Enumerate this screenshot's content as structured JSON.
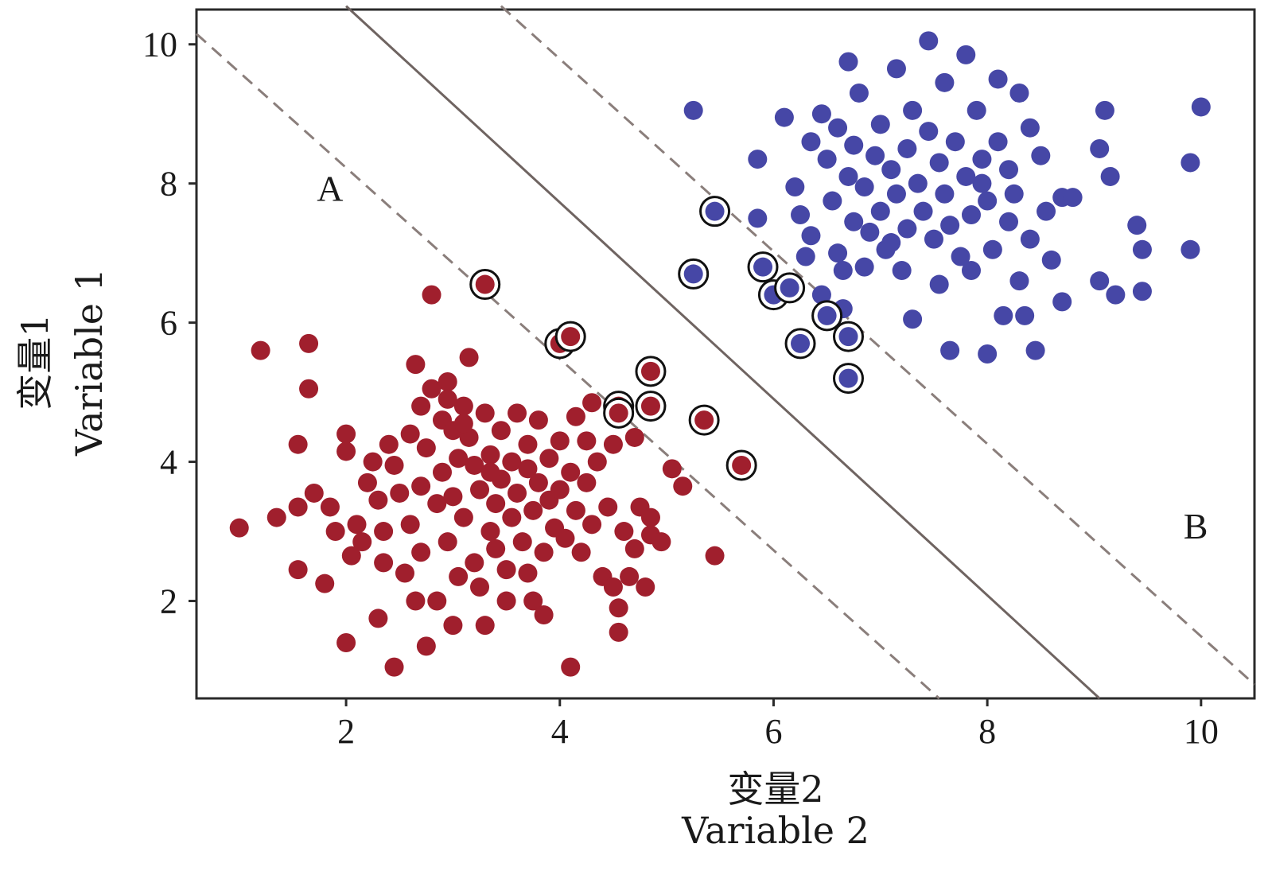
{
  "chart_data": {
    "type": "scatter",
    "title": "",
    "xlabel_cn": "变量2",
    "xlabel_en": "Variable 2",
    "ylabel_cn": "变量1",
    "ylabel_en": "Variable 1",
    "xlim": [
      0.6,
      10.5
    ],
    "ylim": [
      0.6,
      10.5
    ],
    "xticks": [
      2,
      4,
      6,
      8,
      10
    ],
    "yticks": [
      2,
      4,
      6,
      8,
      10
    ],
    "grid": false,
    "region_labels": [
      {
        "text": "A",
        "x": 1.85,
        "y": 7.75
      },
      {
        "text": "B",
        "x": 9.95,
        "y": 2.9
      }
    ],
    "lines": [
      {
        "name": "hyperplane",
        "style": "solid",
        "color": "#6f6461",
        "points": [
          [
            2.0,
            10.55
          ],
          [
            9.05,
            0.6
          ]
        ]
      },
      {
        "name": "margin-A",
        "style": "dashed",
        "color": "#8a7e7b",
        "points": [
          [
            0.6,
            10.15
          ],
          [
            7.55,
            0.6
          ]
        ]
      },
      {
        "name": "margin-B",
        "style": "dashed",
        "color": "#8a7e7b",
        "points": [
          [
            3.45,
            10.55
          ],
          [
            10.5,
            0.8
          ]
        ]
      }
    ],
    "colors": {
      "red": "#a01f2d",
      "blue": "#4647a6",
      "ring": "#111111"
    },
    "series": [
      {
        "color": "red",
        "values": [
          [
            1.0,
            3.05
          ],
          [
            1.2,
            5.6
          ],
          [
            1.35,
            3.2
          ],
          [
            1.55,
            4.25
          ],
          [
            1.55,
            2.45
          ],
          [
            1.55,
            3.35
          ],
          [
            1.65,
            5.7
          ],
          [
            1.65,
            5.05
          ],
          [
            1.7,
            3.55
          ],
          [
            1.8,
            2.25
          ],
          [
            1.85,
            3.35
          ],
          [
            1.9,
            3.0
          ],
          [
            2.0,
            4.4
          ],
          [
            2.0,
            4.15
          ],
          [
            2.0,
            1.4
          ],
          [
            2.05,
            2.65
          ],
          [
            2.1,
            3.1
          ],
          [
            2.15,
            2.85
          ],
          [
            2.2,
            3.7
          ],
          [
            2.25,
            4.0
          ],
          [
            2.3,
            3.45
          ],
          [
            2.35,
            3.0
          ],
          [
            2.3,
            1.75
          ],
          [
            2.35,
            2.55
          ],
          [
            2.4,
            4.25
          ],
          [
            2.45,
            3.95
          ],
          [
            2.45,
            1.05
          ],
          [
            2.5,
            3.55
          ],
          [
            2.55,
            2.4
          ],
          [
            2.6,
            4.4
          ],
          [
            2.6,
            3.1
          ],
          [
            2.65,
            5.4
          ],
          [
            2.65,
            2.0
          ],
          [
            2.7,
            4.8
          ],
          [
            2.7,
            3.65
          ],
          [
            2.7,
            2.7
          ],
          [
            2.75,
            4.2
          ],
          [
            2.75,
            1.35
          ],
          [
            2.8,
            6.4
          ],
          [
            2.8,
            5.05
          ],
          [
            2.85,
            3.4
          ],
          [
            2.85,
            2.0
          ],
          [
            2.9,
            4.6
          ],
          [
            2.9,
            3.85
          ],
          [
            2.95,
            5.15
          ],
          [
            2.95,
            2.85
          ],
          [
            3.0,
            4.45
          ],
          [
            3.0,
            3.5
          ],
          [
            3.0,
            1.65
          ],
          [
            3.05,
            4.05
          ],
          [
            3.05,
            2.35
          ],
          [
            3.1,
            4.8
          ],
          [
            3.1,
            3.2
          ],
          [
            3.15,
            5.5
          ],
          [
            3.15,
            4.35
          ],
          [
            3.2,
            3.95
          ],
          [
            3.2,
            2.55
          ],
          [
            3.25,
            3.6
          ],
          [
            3.25,
            2.2
          ],
          [
            3.3,
            4.7
          ],
          [
            3.3,
            1.65
          ],
          [
            3.35,
            4.1
          ],
          [
            3.35,
            3.0
          ],
          [
            3.4,
            3.4
          ],
          [
            3.4,
            2.75
          ],
          [
            3.45,
            4.45
          ],
          [
            3.45,
            3.75
          ],
          [
            3.5,
            2.45
          ],
          [
            3.5,
            2.0
          ],
          [
            3.55,
            4.0
          ],
          [
            3.55,
            3.2
          ],
          [
            3.6,
            4.7
          ],
          [
            3.6,
            3.55
          ],
          [
            3.65,
            2.85
          ],
          [
            3.7,
            4.25
          ],
          [
            3.7,
            3.9
          ],
          [
            3.7,
            2.4
          ],
          [
            3.75,
            3.3
          ],
          [
            3.75,
            2.0
          ],
          [
            3.8,
            4.6
          ],
          [
            3.8,
            3.7
          ],
          [
            3.85,
            2.7
          ],
          [
            3.85,
            1.8
          ],
          [
            3.9,
            4.05
          ],
          [
            3.9,
            3.45
          ],
          [
            3.95,
            3.05
          ],
          [
            4.0,
            4.3
          ],
          [
            4.0,
            3.6
          ],
          [
            4.05,
            2.9
          ],
          [
            4.1,
            3.85
          ],
          [
            4.1,
            1.05
          ],
          [
            4.15,
            4.65
          ],
          [
            4.15,
            3.3
          ],
          [
            4.2,
            2.7
          ],
          [
            4.25,
            4.3
          ],
          [
            4.25,
            3.7
          ],
          [
            4.3,
            4.85
          ],
          [
            4.3,
            3.1
          ],
          [
            4.35,
            4.0
          ],
          [
            4.4,
            2.35
          ],
          [
            4.45,
            3.35
          ],
          [
            4.5,
            4.25
          ],
          [
            4.5,
            2.2
          ],
          [
            4.55,
            1.9
          ],
          [
            4.55,
            1.55
          ],
          [
            4.6,
            3.0
          ],
          [
            4.65,
            2.35
          ],
          [
            4.7,
            4.35
          ],
          [
            4.7,
            2.75
          ],
          [
            4.75,
            3.35
          ],
          [
            4.8,
            2.2
          ],
          [
            4.85,
            2.95
          ],
          [
            4.85,
            3.2
          ],
          [
            4.95,
            2.85
          ],
          [
            5.05,
            3.9
          ],
          [
            5.15,
            3.65
          ],
          [
            5.45,
            2.65
          ],
          [
            2.95,
            4.9
          ],
          [
            3.1,
            4.55
          ],
          [
            3.35,
            3.85
          ]
        ],
        "support_vectors": [
          [
            3.3,
            6.55
          ],
          [
            4.0,
            5.7
          ],
          [
            4.1,
            5.8
          ],
          [
            4.55,
            4.8
          ],
          [
            4.55,
            4.7
          ],
          [
            4.85,
            5.3
          ],
          [
            4.85,
            4.8
          ],
          [
            5.35,
            4.6
          ],
          [
            5.7,
            3.95
          ]
        ]
      },
      {
        "color": "blue",
        "values": [
          [
            5.25,
            9.05
          ],
          [
            5.85,
            7.5
          ],
          [
            5.85,
            8.35
          ],
          [
            6.1,
            8.95
          ],
          [
            6.2,
            7.95
          ],
          [
            6.25,
            7.55
          ],
          [
            6.3,
            6.95
          ],
          [
            6.35,
            8.6
          ],
          [
            6.35,
            7.25
          ],
          [
            6.45,
            9.0
          ],
          [
            6.45,
            6.4
          ],
          [
            6.5,
            8.35
          ],
          [
            6.55,
            7.75
          ],
          [
            6.6,
            7.0
          ],
          [
            6.6,
            8.8
          ],
          [
            6.65,
            6.2
          ],
          [
            6.7,
            8.1
          ],
          [
            6.7,
            9.75
          ],
          [
            6.75,
            7.45
          ],
          [
            6.75,
            8.55
          ],
          [
            6.8,
            9.3
          ],
          [
            6.85,
            7.95
          ],
          [
            6.85,
            6.8
          ],
          [
            6.9,
            7.3
          ],
          [
            6.95,
            8.4
          ],
          [
            7.0,
            8.85
          ],
          [
            7.0,
            7.6
          ],
          [
            7.05,
            7.05
          ],
          [
            7.1,
            8.2
          ],
          [
            7.15,
            9.65
          ],
          [
            7.15,
            7.85
          ],
          [
            7.2,
            6.75
          ],
          [
            7.25,
            8.5
          ],
          [
            7.25,
            7.35
          ],
          [
            7.3,
            9.05
          ],
          [
            7.3,
            6.05
          ],
          [
            7.35,
            8.0
          ],
          [
            7.4,
            7.6
          ],
          [
            7.45,
            10.05
          ],
          [
            7.45,
            8.75
          ],
          [
            7.5,
            7.2
          ],
          [
            7.55,
            8.3
          ],
          [
            7.55,
            6.55
          ],
          [
            7.6,
            9.45
          ],
          [
            7.6,
            7.85
          ],
          [
            7.65,
            7.4
          ],
          [
            7.65,
            5.6
          ],
          [
            7.7,
            8.6
          ],
          [
            7.75,
            6.95
          ],
          [
            7.8,
            9.85
          ],
          [
            7.8,
            8.1
          ],
          [
            7.85,
            7.55
          ],
          [
            7.85,
            6.75
          ],
          [
            7.9,
            9.05
          ],
          [
            7.95,
            8.35
          ],
          [
            8.0,
            7.75
          ],
          [
            8.0,
            5.55
          ],
          [
            8.05,
            7.05
          ],
          [
            8.1,
            9.5
          ],
          [
            8.1,
            8.6
          ],
          [
            8.15,
            6.1
          ],
          [
            8.2,
            7.45
          ],
          [
            8.2,
            8.2
          ],
          [
            8.25,
            7.85
          ],
          [
            8.3,
            6.6
          ],
          [
            8.3,
            9.3
          ],
          [
            8.35,
            6.1
          ],
          [
            8.4,
            8.8
          ],
          [
            8.4,
            7.2
          ],
          [
            8.45,
            5.6
          ],
          [
            8.5,
            8.4
          ],
          [
            8.55,
            7.6
          ],
          [
            8.6,
            6.9
          ],
          [
            8.7,
            7.8
          ],
          [
            8.7,
            6.3
          ],
          [
            8.8,
            7.8
          ],
          [
            9.05,
            6.6
          ],
          [
            9.05,
            8.5
          ],
          [
            9.1,
            9.05
          ],
          [
            9.15,
            8.1
          ],
          [
            9.2,
            6.4
          ],
          [
            9.4,
            7.4
          ],
          [
            9.45,
            7.05
          ],
          [
            9.45,
            6.45
          ],
          [
            9.9,
            8.3
          ],
          [
            9.9,
            7.05
          ],
          [
            10.0,
            9.1
          ],
          [
            6.65,
            6.75
          ],
          [
            7.1,
            7.15
          ],
          [
            7.95,
            8.0
          ]
        ],
        "support_vectors": [
          [
            5.25,
            6.7
          ],
          [
            5.45,
            7.6
          ],
          [
            5.9,
            6.8
          ],
          [
            6.0,
            6.4
          ],
          [
            6.15,
            6.5
          ],
          [
            6.25,
            5.7
          ],
          [
            6.5,
            6.1
          ],
          [
            6.7,
            5.8
          ],
          [
            6.7,
            5.2
          ]
        ]
      }
    ]
  }
}
